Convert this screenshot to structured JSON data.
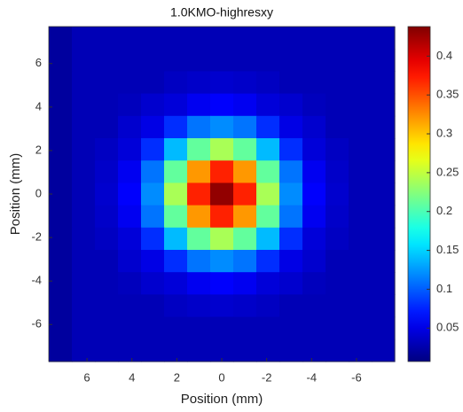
{
  "chart_data": {
    "type": "heatmap",
    "title": "1.0KMO-highresxy",
    "xlabel": "Position (mm)",
    "ylabel": "Position (mm)",
    "xlim": [
      7.7,
      -7.7
    ],
    "ylim": [
      -7.7,
      7.7
    ],
    "xticks": [
      6,
      4,
      2,
      0,
      -2,
      -4,
      -6
    ],
    "yticks": [
      -6,
      -4,
      -2,
      0,
      2,
      4,
      6
    ],
    "colormap": "jet",
    "clim": [
      0.007,
      0.438
    ],
    "cticks": [
      0.05,
      0.1,
      0.15,
      0.2,
      0.25,
      0.3,
      0.35,
      0.4
    ],
    "z": [
      [
        0.02,
        0.03,
        0.03,
        0.03,
        0.03,
        0.03,
        0.03,
        0.03,
        0.03,
        0.03,
        0.03,
        0.03,
        0.03,
        0.03,
        0.03
      ],
      [
        0.02,
        0.03,
        0.03,
        0.03,
        0.03,
        0.03,
        0.03,
        0.03,
        0.03,
        0.03,
        0.03,
        0.03,
        0.03,
        0.03,
        0.03
      ],
      [
        0.02,
        0.03,
        0.03,
        0.03,
        0.03,
        0.035,
        0.038,
        0.04,
        0.038,
        0.035,
        0.03,
        0.03,
        0.03,
        0.03,
        0.03
      ],
      [
        0.02,
        0.03,
        0.03,
        0.033,
        0.04,
        0.045,
        0.055,
        0.06,
        0.055,
        0.045,
        0.04,
        0.033,
        0.03,
        0.03,
        0.03
      ],
      [
        0.02,
        0.03,
        0.03,
        0.04,
        0.05,
        0.08,
        0.11,
        0.12,
        0.11,
        0.08,
        0.05,
        0.04,
        0.03,
        0.03,
        0.03
      ],
      [
        0.02,
        0.03,
        0.035,
        0.045,
        0.08,
        0.14,
        0.21,
        0.24,
        0.21,
        0.14,
        0.08,
        0.045,
        0.035,
        0.03,
        0.03
      ],
      [
        0.02,
        0.03,
        0.038,
        0.055,
        0.11,
        0.21,
        0.32,
        0.37,
        0.32,
        0.21,
        0.11,
        0.055,
        0.038,
        0.03,
        0.03
      ],
      [
        0.02,
        0.03,
        0.04,
        0.06,
        0.12,
        0.24,
        0.37,
        0.43,
        0.37,
        0.24,
        0.12,
        0.06,
        0.04,
        0.03,
        0.03
      ],
      [
        0.02,
        0.03,
        0.038,
        0.055,
        0.11,
        0.21,
        0.32,
        0.37,
        0.32,
        0.21,
        0.11,
        0.055,
        0.038,
        0.03,
        0.03
      ],
      [
        0.02,
        0.03,
        0.035,
        0.045,
        0.08,
        0.14,
        0.21,
        0.24,
        0.21,
        0.14,
        0.08,
        0.045,
        0.035,
        0.03,
        0.03
      ],
      [
        0.02,
        0.03,
        0.03,
        0.04,
        0.05,
        0.08,
        0.11,
        0.12,
        0.11,
        0.08,
        0.05,
        0.04,
        0.03,
        0.03,
        0.03
      ],
      [
        0.02,
        0.03,
        0.03,
        0.033,
        0.04,
        0.045,
        0.055,
        0.06,
        0.055,
        0.045,
        0.04,
        0.033,
        0.03,
        0.03,
        0.03
      ],
      [
        0.02,
        0.03,
        0.03,
        0.03,
        0.03,
        0.035,
        0.038,
        0.04,
        0.038,
        0.035,
        0.03,
        0.03,
        0.03,
        0.03,
        0.03
      ],
      [
        0.02,
        0.03,
        0.03,
        0.03,
        0.03,
        0.03,
        0.03,
        0.03,
        0.03,
        0.03,
        0.03,
        0.03,
        0.03,
        0.03,
        0.03
      ],
      [
        0.02,
        0.03,
        0.03,
        0.03,
        0.03,
        0.03,
        0.03,
        0.03,
        0.03,
        0.03,
        0.03,
        0.03,
        0.03,
        0.03,
        0.03
      ]
    ]
  }
}
